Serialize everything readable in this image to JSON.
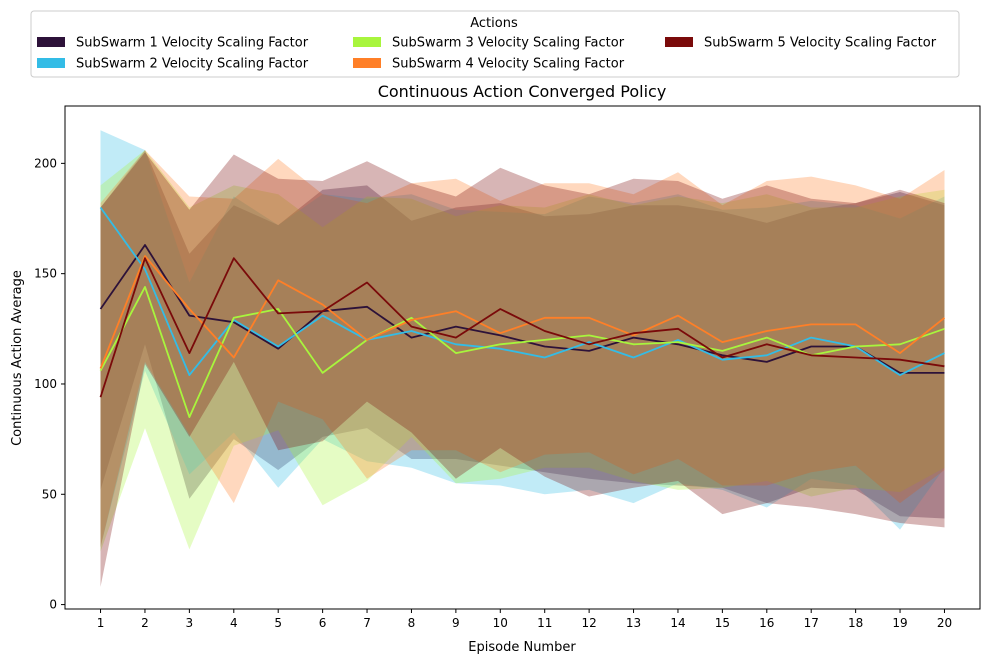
{
  "chart_data": {
    "type": "line",
    "title": "Continuous Action Converged Policy",
    "xlabel": "Episode Number",
    "ylabel": "Continuous Action Average",
    "x": [
      1,
      2,
      3,
      4,
      5,
      6,
      7,
      8,
      9,
      10,
      11,
      12,
      13,
      14,
      15,
      16,
      17,
      18,
      19,
      20
    ],
    "xlim": [
      0.2,
      20.8
    ],
    "ylim": [
      -2,
      226
    ],
    "yticks": [
      0,
      50,
      100,
      150,
      200
    ],
    "grid": false,
    "legend": {
      "title": "Actions",
      "placement": "top",
      "columns": 3
    },
    "series": [
      {
        "name": "SubSwarm 1 Velocity Scaling Factor",
        "color": "#2d1239",
        "values": [
          134,
          163,
          131,
          128,
          116,
          133,
          135,
          121,
          126,
          122,
          117,
          115,
          121,
          118,
          113,
          110,
          117,
          117,
          105,
          105
        ],
        "upper": [
          180,
          206,
          159,
          181,
          172,
          188,
          190,
          174,
          180,
          182,
          176,
          177,
          181,
          181,
          178,
          173,
          179,
          182,
          187,
          181
        ],
        "lower": [
          52,
          118,
          48,
          75,
          61,
          76,
          80,
          66,
          66,
          63,
          60,
          57,
          55,
          54,
          53,
          46,
          53,
          52,
          40,
          39
        ]
      },
      {
        "name": "SubSwarm 2 Velocity Scaling Factor",
        "color": "#33bce6",
        "values": [
          180,
          152,
          104,
          129,
          117,
          131,
          120,
          124,
          118,
          116,
          112,
          119,
          112,
          120,
          111,
          113,
          121,
          117,
          104,
          114
        ],
        "upper": [
          215,
          206,
          146,
          185,
          172,
          186,
          184,
          186,
          179,
          178,
          177,
          185,
          182,
          186,
          179,
          180,
          183,
          181,
          175,
          185
        ],
        "lower": [
          26,
          106,
          59,
          78,
          53,
          75,
          65,
          62,
          55,
          54,
          50,
          52,
          46,
          55,
          52,
          44,
          57,
          54,
          34,
          62
        ]
      },
      {
        "name": "SubSwarm 3 Velocity Scaling Factor",
        "color": "#a8f53d",
        "values": [
          106,
          144,
          85,
          130,
          134,
          105,
          120,
          130,
          114,
          118,
          120,
          122,
          118,
          119,
          115,
          121,
          113,
          117,
          118,
          125
        ],
        "upper": [
          190,
          206,
          180,
          190,
          186,
          171,
          185,
          184,
          176,
          181,
          180,
          186,
          181,
          185,
          182,
          186,
          180,
          180,
          185,
          188
        ],
        "lower": [
          24,
          80,
          25,
          72,
          79,
          45,
          56,
          76,
          55,
          57,
          62,
          62,
          56,
          52,
          53,
          56,
          49,
          53,
          51,
          62
        ]
      },
      {
        "name": "SubSwarm 4 Velocity Scaling Factor",
        "color": "#ff7f27",
        "values": [
          107,
          158,
          134,
          112,
          147,
          136,
          120,
          129,
          133,
          123,
          130,
          130,
          122,
          131,
          119,
          124,
          127,
          127,
          114,
          130
        ],
        "upper": [
          182,
          206,
          185,
          184,
          202,
          186,
          182,
          191,
          193,
          183,
          191,
          191,
          186,
          196,
          181,
          192,
          194,
          190,
          184,
          197
        ],
        "lower": [
          26,
          110,
          77,
          46,
          92,
          84,
          57,
          70,
          70,
          60,
          68,
          69,
          59,
          66,
          54,
          54,
          60,
          63,
          46,
          61
        ]
      },
      {
        "name": "SubSwarm 5 Velocity Scaling Factor",
        "color": "#7a0a0a",
        "values": [
          94,
          157,
          114,
          157,
          132,
          133,
          146,
          126,
          121,
          134,
          124,
          118,
          123,
          125,
          112,
          118,
          113,
          112,
          111,
          108
        ],
        "upper": [
          180,
          205,
          179,
          204,
          193,
          192,
          201,
          191,
          185,
          198,
          190,
          186,
          193,
          192,
          184,
          190,
          184,
          182,
          188,
          182
        ],
        "lower": [
          8,
          109,
          76,
          110,
          70,
          74,
          92,
          78,
          57,
          71,
          58,
          49,
          53,
          56,
          41,
          46,
          44,
          41,
          37,
          35
        ]
      }
    ]
  }
}
